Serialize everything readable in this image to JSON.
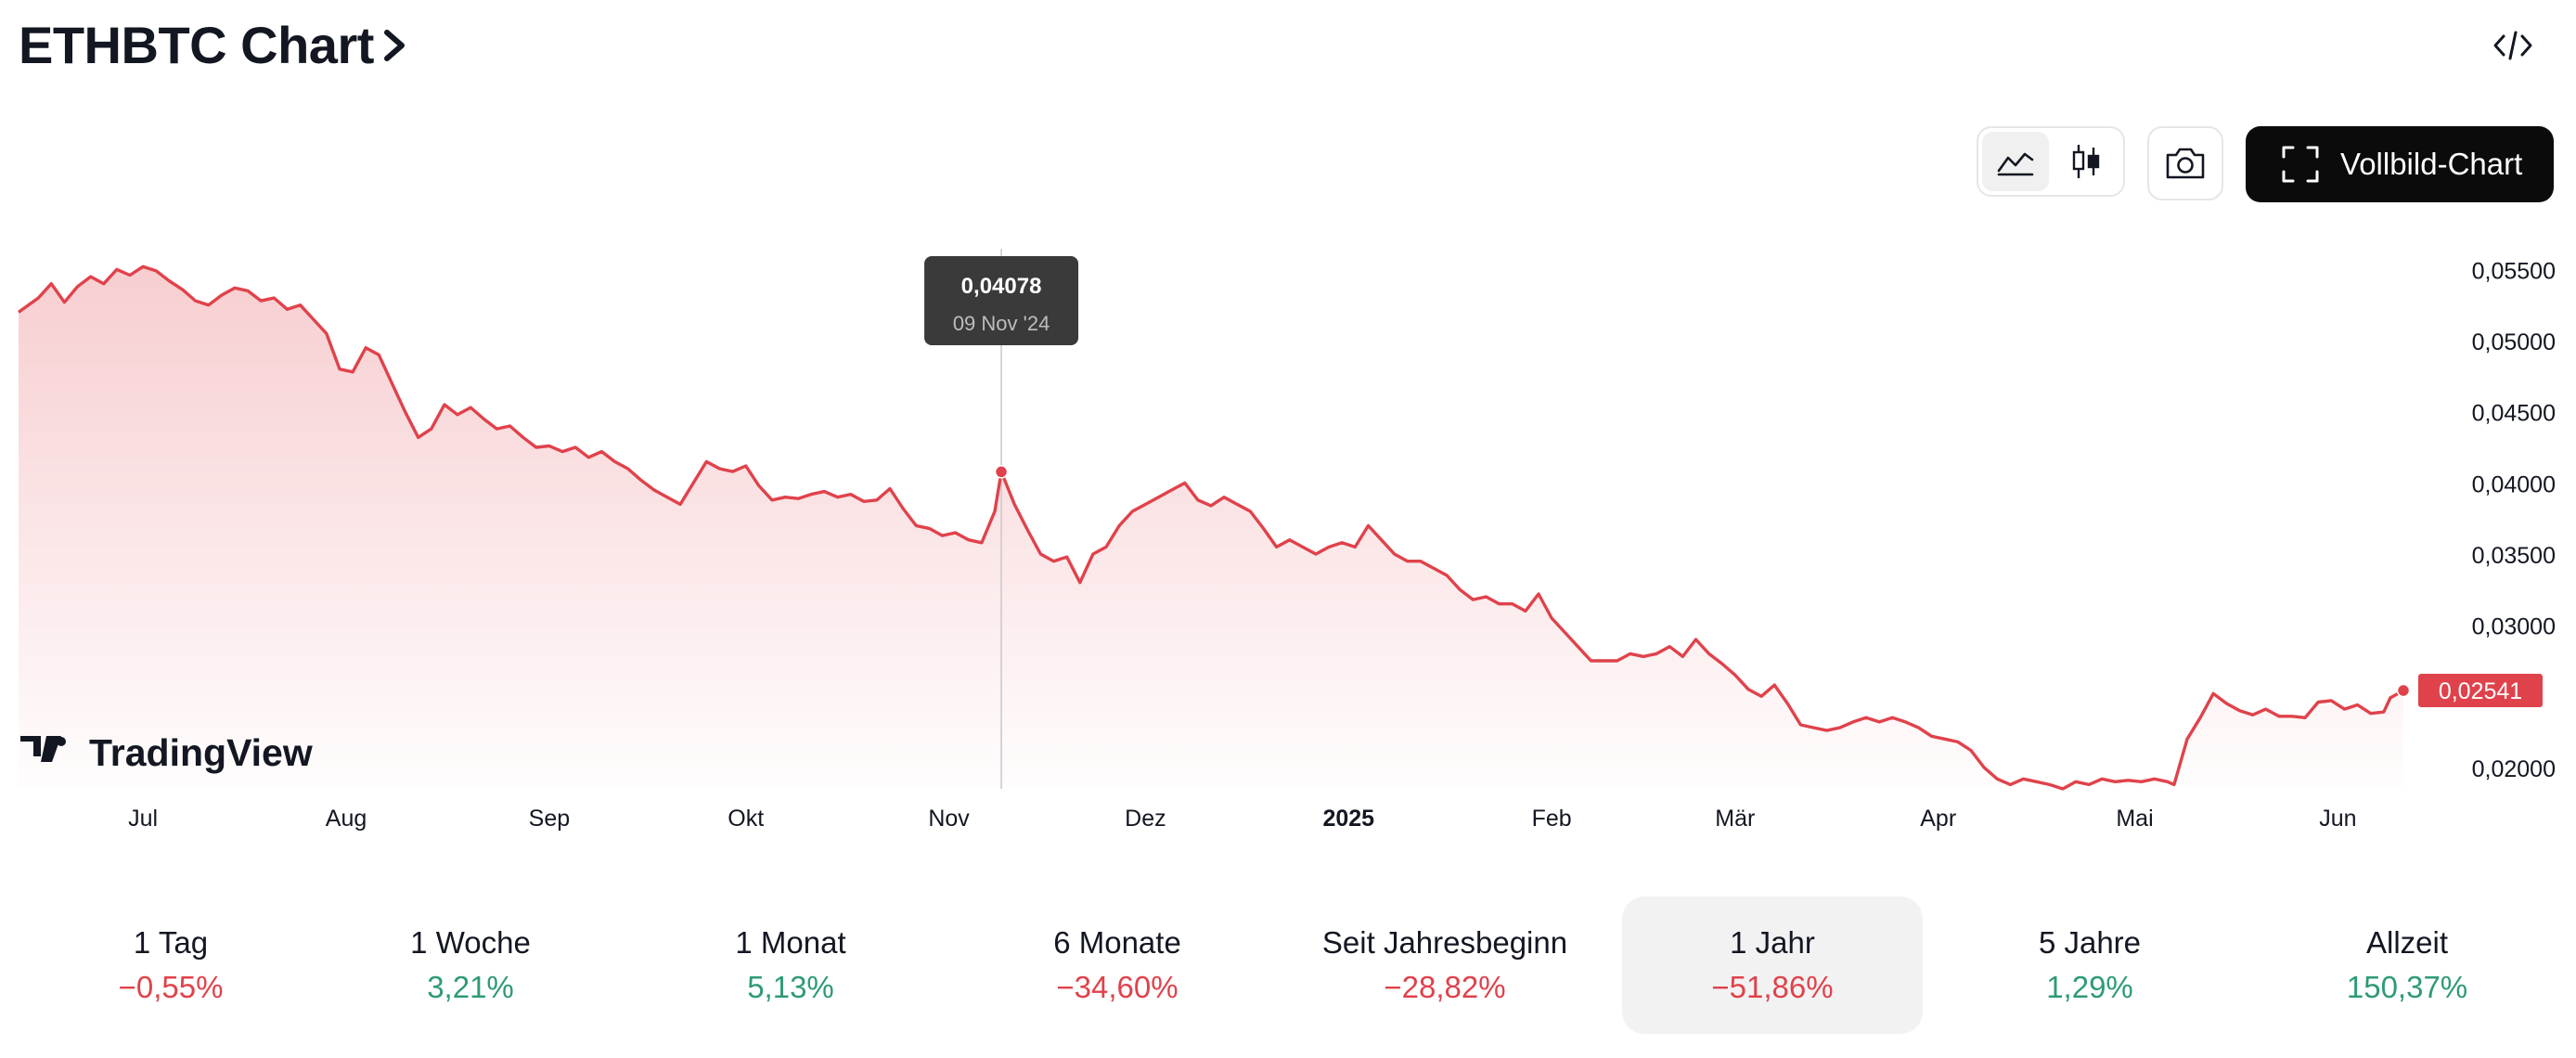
{
  "header": {
    "title": "ETHBTC Chart"
  },
  "icons": {
    "title_chevron": "chevron-right-icon",
    "embed": "code-icon",
    "line_chart": "line-chart-icon",
    "candles": "candlestick-icon",
    "camera": "camera-icon",
    "fullscreen": "fullscreen-icon"
  },
  "toolbar": {
    "fullscreen_label": "Vollbild-Chart"
  },
  "colors": {
    "line": "#e0424b",
    "positive": "#2e9b74",
    "negative": "#e0424b",
    "tooltip_bg": "#3a3a3a",
    "last_price_bg": "#e0424b"
  },
  "chart_data": {
    "type": "area",
    "title": "ETHBTC",
    "ylim": [
      0.0185,
      0.0562
    ],
    "xlim": [
      0,
      364
    ],
    "y_ticks": [
      "0,05500",
      "0,05000",
      "0,04500",
      "0,04000",
      "0,03500",
      "0,03000",
      "0,02000"
    ],
    "y_tick_values": [
      0.055,
      0.05,
      0.045,
      0.04,
      0.035,
      0.03,
      0.02
    ],
    "x_ticks": [
      {
        "label": "Jul",
        "day": 19
      },
      {
        "label": "Aug",
        "day": 50
      },
      {
        "label": "Sep",
        "day": 81
      },
      {
        "label": "Okt",
        "day": 111
      },
      {
        "label": "Nov",
        "day": 142
      },
      {
        "label": "Dez",
        "day": 172
      },
      {
        "label": "2025",
        "day": 203,
        "bold": true
      },
      {
        "label": "Feb",
        "day": 234
      },
      {
        "label": "Mär",
        "day": 262
      },
      {
        "label": "Apr",
        "day": 293
      },
      {
        "label": "Mai",
        "day": 323
      },
      {
        "label": "Jun",
        "day": 354
      }
    ],
    "points": [
      [
        0,
        0.052
      ],
      [
        3,
        0.053
      ],
      [
        5,
        0.054
      ],
      [
        7,
        0.0527
      ],
      [
        9,
        0.0538
      ],
      [
        11,
        0.0545
      ],
      [
        13,
        0.054
      ],
      [
        15,
        0.055
      ],
      [
        17,
        0.0546
      ],
      [
        19,
        0.0552
      ],
      [
        21,
        0.0549
      ],
      [
        23,
        0.0542
      ],
      [
        25,
        0.0536
      ],
      [
        27,
        0.0528
      ],
      [
        29,
        0.0525
      ],
      [
        31,
        0.0532
      ],
      [
        33,
        0.0537
      ],
      [
        35,
        0.0535
      ],
      [
        37,
        0.0528
      ],
      [
        39,
        0.053
      ],
      [
        41,
        0.0522
      ],
      [
        43,
        0.0525
      ],
      [
        45,
        0.0515
      ],
      [
        47,
        0.0505
      ],
      [
        49,
        0.048
      ],
      [
        51,
        0.0478
      ],
      [
        53,
        0.0495
      ],
      [
        55,
        0.049
      ],
      [
        57,
        0.047
      ],
      [
        59,
        0.045
      ],
      [
        61,
        0.0432
      ],
      [
        63,
        0.0438
      ],
      [
        65,
        0.0455
      ],
      [
        67,
        0.0448
      ],
      [
        69,
        0.0453
      ],
      [
        71,
        0.0445
      ],
      [
        73,
        0.0438
      ],
      [
        75,
        0.044
      ],
      [
        77,
        0.0432
      ],
      [
        79,
        0.0425
      ],
      [
        81,
        0.0426
      ],
      [
        83,
        0.0422
      ],
      [
        85,
        0.0425
      ],
      [
        87,
        0.0418
      ],
      [
        89,
        0.0422
      ],
      [
        91,
        0.0415
      ],
      [
        93,
        0.041
      ],
      [
        95,
        0.0402
      ],
      [
        97,
        0.0395
      ],
      [
        99,
        0.039
      ],
      [
        101,
        0.0385
      ],
      [
        103,
        0.04
      ],
      [
        105,
        0.0415
      ],
      [
        107,
        0.041
      ],
      [
        109,
        0.0408
      ],
      [
        111,
        0.0412
      ],
      [
        113,
        0.0398
      ],
      [
        115,
        0.0388
      ],
      [
        117,
        0.039
      ],
      [
        119,
        0.0389
      ],
      [
        121,
        0.0392
      ],
      [
        123,
        0.0394
      ],
      [
        125,
        0.039
      ],
      [
        127,
        0.0392
      ],
      [
        129,
        0.0387
      ],
      [
        131,
        0.0388
      ],
      [
        133,
        0.0396
      ],
      [
        135,
        0.0382
      ],
      [
        137,
        0.037
      ],
      [
        139,
        0.0368
      ],
      [
        141,
        0.0363
      ],
      [
        143,
        0.0365
      ],
      [
        145,
        0.036
      ],
      [
        147,
        0.0358
      ],
      [
        149,
        0.038
      ],
      [
        150,
        0.04078
      ],
      [
        152,
        0.0385
      ],
      [
        154,
        0.0367
      ],
      [
        156,
        0.035
      ],
      [
        158,
        0.0345
      ],
      [
        160,
        0.0348
      ],
      [
        162,
        0.033
      ],
      [
        164,
        0.035
      ],
      [
        166,
        0.0355
      ],
      [
        168,
        0.037
      ],
      [
        170,
        0.038
      ],
      [
        172,
        0.0385
      ],
      [
        174,
        0.039
      ],
      [
        176,
        0.0395
      ],
      [
        178,
        0.04
      ],
      [
        180,
        0.0388
      ],
      [
        182,
        0.0384
      ],
      [
        184,
        0.039
      ],
      [
        186,
        0.0385
      ],
      [
        188,
        0.038
      ],
      [
        190,
        0.0368
      ],
      [
        192,
        0.0355
      ],
      [
        194,
        0.036
      ],
      [
        196,
        0.0355
      ],
      [
        198,
        0.035
      ],
      [
        200,
        0.0355
      ],
      [
        202,
        0.0358
      ],
      [
        204,
        0.0355
      ],
      [
        206,
        0.037
      ],
      [
        208,
        0.036
      ],
      [
        210,
        0.035
      ],
      [
        212,
        0.0345
      ],
      [
        214,
        0.0345
      ],
      [
        216,
        0.034
      ],
      [
        218,
        0.0335
      ],
      [
        220,
        0.0325
      ],
      [
        222,
        0.0318
      ],
      [
        224,
        0.032
      ],
      [
        226,
        0.0315
      ],
      [
        228,
        0.0315
      ],
      [
        230,
        0.031
      ],
      [
        232,
        0.0322
      ],
      [
        234,
        0.0305
      ],
      [
        236,
        0.0295
      ],
      [
        238,
        0.0285
      ],
      [
        240,
        0.0275
      ],
      [
        242,
        0.0275
      ],
      [
        244,
        0.0275
      ],
      [
        246,
        0.028
      ],
      [
        248,
        0.0278
      ],
      [
        250,
        0.028
      ],
      [
        252,
        0.0285
      ],
      [
        254,
        0.0278
      ],
      [
        256,
        0.029
      ],
      [
        258,
        0.028
      ],
      [
        260,
        0.0273
      ],
      [
        262,
        0.0265
      ],
      [
        264,
        0.0255
      ],
      [
        266,
        0.025
      ],
      [
        268,
        0.0258
      ],
      [
        270,
        0.0245
      ],
      [
        272,
        0.023
      ],
      [
        274,
        0.0228
      ],
      [
        276,
        0.0226
      ],
      [
        278,
        0.0228
      ],
      [
        280,
        0.0232
      ],
      [
        282,
        0.0235
      ],
      [
        284,
        0.0232
      ],
      [
        286,
        0.0235
      ],
      [
        288,
        0.0232
      ],
      [
        290,
        0.0228
      ],
      [
        292,
        0.0222
      ],
      [
        294,
        0.022
      ],
      [
        296,
        0.0218
      ],
      [
        298,
        0.0212
      ],
      [
        300,
        0.02
      ],
      [
        302,
        0.0192
      ],
      [
        304,
        0.0188
      ],
      [
        306,
        0.0192
      ],
      [
        308,
        0.019
      ],
      [
        310,
        0.0188
      ],
      [
        312,
        0.0185
      ],
      [
        314,
        0.019
      ],
      [
        316,
        0.0188
      ],
      [
        318,
        0.0192
      ],
      [
        320,
        0.019
      ],
      [
        322,
        0.0191
      ],
      [
        324,
        0.019
      ],
      [
        326,
        0.0192
      ],
      [
        328,
        0.019
      ],
      [
        329,
        0.0188
      ],
      [
        331,
        0.022
      ],
      [
        333,
        0.0235
      ],
      [
        335,
        0.0252
      ],
      [
        337,
        0.0245
      ],
      [
        339,
        0.024
      ],
      [
        341,
        0.0237
      ],
      [
        343,
        0.0241
      ],
      [
        345,
        0.0236
      ],
      [
        347,
        0.0236
      ],
      [
        349,
        0.0235
      ],
      [
        351,
        0.0246
      ],
      [
        353,
        0.0247
      ],
      [
        355,
        0.0241
      ],
      [
        357,
        0.0244
      ],
      [
        359,
        0.0238
      ],
      [
        361,
        0.0239
      ],
      [
        362,
        0.0249
      ],
      [
        364,
        0.02541
      ]
    ],
    "highlight": {
      "day": 150,
      "value": 0.04078,
      "value_label": "0,04078",
      "date_label": "09 Nov '24"
    },
    "last_price": {
      "value": 0.02541,
      "label": "0,02541"
    },
    "watermark": "TradingView"
  },
  "periods": [
    {
      "label": "1 Tag",
      "value": "−0,55%",
      "sign": "neg",
      "selected": false
    },
    {
      "label": "1 Woche",
      "value": "3,21%",
      "sign": "pos",
      "selected": false
    },
    {
      "label": "1 Monat",
      "value": "5,13%",
      "sign": "pos",
      "selected": false
    },
    {
      "label": "6 Monate",
      "value": "−34,60%",
      "sign": "neg",
      "selected": false
    },
    {
      "label": "Seit Jahresbeginn",
      "value": "−28,82%",
      "sign": "neg",
      "selected": false
    },
    {
      "label": "1 Jahr",
      "value": "−51,86%",
      "sign": "neg",
      "selected": true
    },
    {
      "label": "5 Jahre",
      "value": "1,29%",
      "sign": "pos",
      "selected": false
    },
    {
      "label": "Allzeit",
      "value": "150,37%",
      "sign": "pos",
      "selected": false
    }
  ]
}
